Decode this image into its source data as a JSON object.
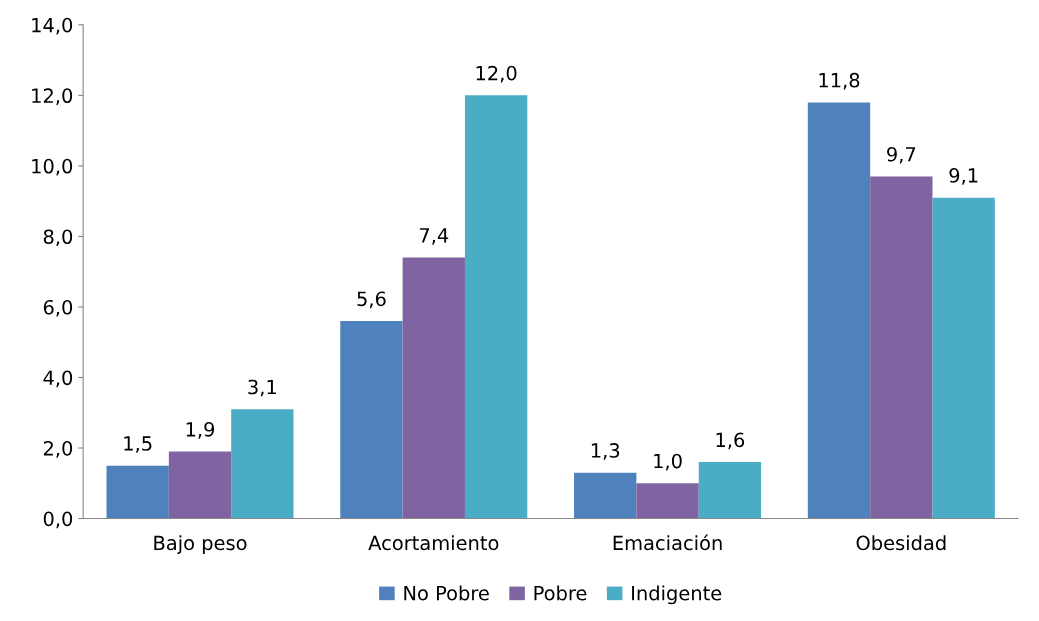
{
  "chart_data": {
    "type": "bar",
    "categories": [
      "Bajo peso",
      "Acortamiento",
      "Emaciación",
      "Obesidad"
    ],
    "series": [
      {
        "name": "No Pobre",
        "color": "#4f81bd",
        "values": [
          1.5,
          5.6,
          1.3,
          11.8
        ],
        "value_labels": [
          "1,5",
          "5,6",
          "1,3",
          "11,8"
        ]
      },
      {
        "name": "Pobre",
        "color": "#8064a2",
        "values": [
          1.9,
          7.4,
          1.0,
          9.7
        ],
        "value_labels": [
          "1,9",
          "7,4",
          "1,0",
          "9,7"
        ]
      },
      {
        "name": "Indigente",
        "color": "#4bacc6",
        "values": [
          3.1,
          12.0,
          1.6,
          9.1
        ],
        "value_labels": [
          "3,1",
          "12,0",
          "1,6",
          "9,1"
        ]
      }
    ],
    "ylim": [
      0,
      14
    ],
    "yticks": [
      {
        "value": 0,
        "label": "0,0"
      },
      {
        "value": 2,
        "label": "2,0"
      },
      {
        "value": 4,
        "label": "4,0"
      },
      {
        "value": 6,
        "label": "6,0"
      },
      {
        "value": 8,
        "label": "8,0"
      },
      {
        "value": 10,
        "label": "10,0"
      },
      {
        "value": 12,
        "label": "12,0"
      },
      {
        "value": 14,
        "label": "14,0"
      }
    ],
    "grid": false,
    "legend": "bottom"
  }
}
